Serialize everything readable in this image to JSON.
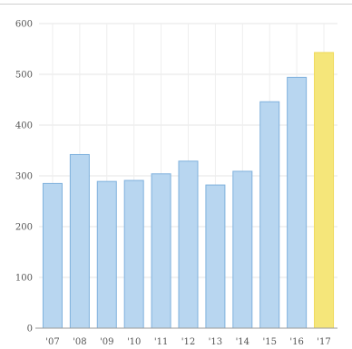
{
  "chart_data": {
    "type": "bar",
    "categories": [
      "'07",
      "'08",
      "'09",
      "'10",
      "'11",
      "'12",
      "'13",
      "'14",
      "'15",
      "'16",
      "'17"
    ],
    "values": [
      285,
      342,
      289,
      291,
      304,
      329,
      282,
      309,
      446,
      494,
      543
    ],
    "title": "",
    "xlabel": "",
    "ylabel": "",
    "ylim": [
      0,
      600
    ],
    "yticks": [
      0,
      100,
      200,
      300,
      400,
      500,
      600
    ],
    "grid": true,
    "highlight_index": 10,
    "colors": {
      "bar_fill": "#b8d6f0",
      "bar_stroke": "#7fb1dd",
      "highlight_fill": "#f5e67a",
      "highlight_stroke": "#efd95a",
      "grid": "#e6e6e6",
      "axis": "#9a9a9a"
    }
  }
}
